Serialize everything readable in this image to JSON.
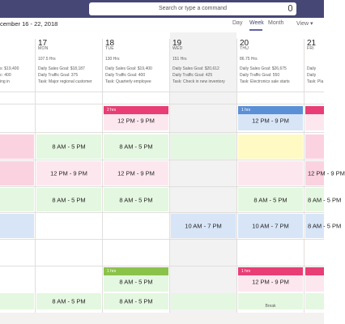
{
  "search": {
    "placeholder": "Search or type a command"
  },
  "toolbar": {
    "date_range": "cember 16 - 22, 2018",
    "views": [
      "Day",
      "Week",
      "Month"
    ],
    "active_view": "Week",
    "view_menu": "View"
  },
  "days": [
    {
      "num": "",
      "name": "",
      "hours": "",
      "notes": [
        "s: $19,400",
        "c: 400",
        "ing in"
      ]
    },
    {
      "num": "17",
      "name": "MON",
      "hours": "107.5 Hrs",
      "notes": [
        "Daily Sales Goal: $18,187",
        "Daily Traffic Goal: 375",
        "Task: Major regional customer"
      ]
    },
    {
      "num": "18",
      "name": "TUE",
      "hours": "130 Hrs",
      "notes": [
        "Daily Sales Goal: $19,400",
        "Daily Traffic Goal: 400",
        "Task: Quarterly employee"
      ]
    },
    {
      "num": "19",
      "name": "WED",
      "hours": "151 Hrs",
      "notes": [
        "Daily Sales Goal: $20,612",
        "Daily Traffic Goal: 425",
        "Task: Check in new inventory"
      ]
    },
    {
      "num": "20",
      "name": "THU",
      "hours": "86.75 Hrs",
      "notes": [
        "Daily Sales Goal: $26,675",
        "Daily Traffic Goal: 550",
        "Task: Electronics sale starts"
      ]
    },
    {
      "num": "21",
      "name": "FRI",
      "hours": "",
      "notes": [
        "Daily",
        "Daily",
        "Task: Pla"
      ]
    }
  ],
  "shifts": {
    "s1": "12 PM - 9 PM",
    "s2": "8 AM - 5 PM",
    "s3": "8 AM - 5 PM",
    "s4": "12 PM - 9 PM",
    "s5": "12 PM - 9 PM",
    "s6": "8 AM - 5 PM",
    "s7": "8 AM - 5 PM",
    "s8": "8 AM - 5 PM",
    "s9": "12 PM - 9 PM",
    "s10": "8 AM - 5 PM",
    "s11": "8 AM - 5 PM",
    "s12": "10 AM - 7 PM",
    "s13": "10 AM - 7 PM",
    "s14": "8 AM - 5 PM",
    "s15": "12 PM - 9 PM",
    "s16": "8 AM - 5 PM",
    "s17": "8 AM - 5 PM",
    "s18": "12 PM - 9 PM"
  },
  "bands": {
    "b1": "2 hrs",
    "b2": "1 hrs",
    "b3": "1 hrs",
    "b4": "1 hrs"
  },
  "labels": {
    "break": "Break"
  },
  "colors": {
    "accent": "#6264a7",
    "topbar": "#464775",
    "pink": "#e83e75",
    "blue": "#5b8fd6",
    "green": "#8bc34a"
  }
}
